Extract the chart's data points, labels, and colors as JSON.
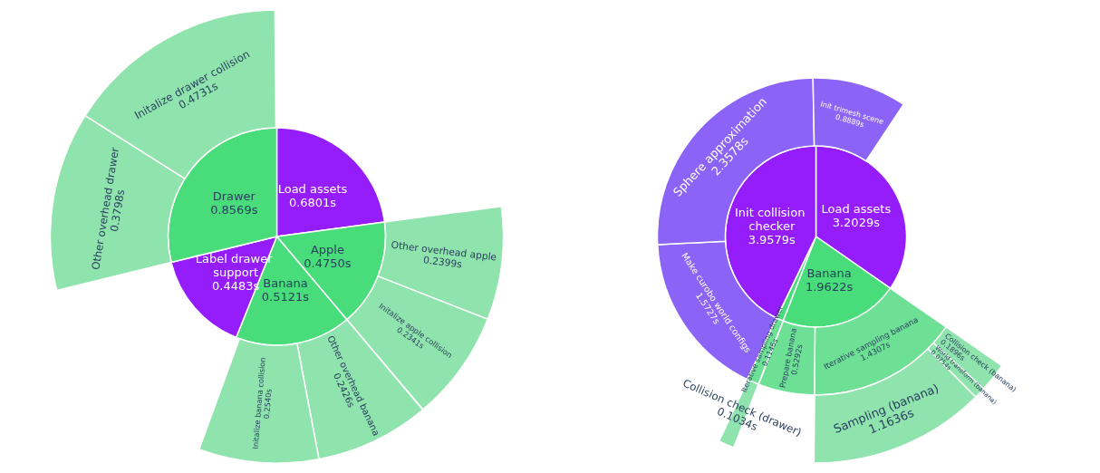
{
  "chart_data": [
    {
      "type": "other",
      "categories": [
        "Load assets",
        "Apple",
        "Other overhead apple",
        "Initalize apple collision",
        "Banana",
        "Other overhead banana",
        "Initalize banana collision",
        "Label drawer support",
        "Drawer",
        "Other overhead drawer",
        "Initalize drawer collision"
      ],
      "series": [
        {
          "values": [
            0.6801,
            0.475,
            null,
            null,
            0.5121,
            null,
            null,
            0.4483,
            0.8569,
            null,
            null
          ],
          "value_labels": [
            "0.6801s",
            "0.4750s",
            null,
            null,
            "0.5121s",
            null,
            null,
            "0.4483s",
            "0.8569s",
            null,
            null
          ],
          "colors": [
            "#951cfb",
            "#48dd7a",
            null,
            null,
            "#48dd7a",
            null,
            null,
            "#951cfb",
            "#48dd7a",
            null,
            null
          ]
        },
        {
          "values": [
            null,
            null,
            0.2399,
            0.2341,
            null,
            0.2426,
            0.254,
            null,
            null,
            0.3798,
            0.4731
          ],
          "value_labels": [
            null,
            null,
            "0.2399s",
            "0.2341s",
            null,
            "0.2426s",
            "0.2540s",
            null,
            null,
            "0.3798s",
            "0.4731s"
          ],
          "color": "#8fe3ac"
        }
      ]
    },
    {
      "type": "other",
      "categories": [
        "Load assets",
        "Banana",
        "Iterative sampling banana",
        "Collision check (banana)",
        "World transform (banana)",
        "Sampling (banana)",
        "Prepare banana",
        null,
        "Iterative sampling drawer",
        "Collision check (drawer)",
        "Init collision checker",
        "Make curobo world configs",
        "Sphere approximation",
        "Init trimesh scene"
      ],
      "series": [
        {
          "values": [
            3.2029,
            1.9622,
            null,
            null,
            null,
            null,
            null,
            null,
            null,
            null,
            3.9579,
            null,
            null,
            null
          ],
          "value_labels": [
            "3.2029s",
            "1.9622s",
            null,
            null,
            null,
            null,
            null,
            null,
            null,
            null,
            "3.9579s",
            null,
            null,
            null
          ],
          "colors": [
            "#951cfb",
            "#48dd7a",
            null,
            null,
            null,
            null,
            null,
            "#48dd7a",
            null,
            null,
            "#951cfb",
            null,
            null,
            null
          ]
        },
        {
          "values": [
            null,
            null,
            1.4307,
            null,
            null,
            null,
            0.5292,
            null,
            0.1146,
            null,
            null,
            1.5727,
            2.3578,
            0.8889
          ],
          "value_labels": [
            null,
            null,
            "1.4307s",
            null,
            null,
            null,
            "0.5292s",
            null,
            "0.1146s",
            null,
            null,
            "1.5727s",
            "2.3578s",
            "0.8889s"
          ],
          "colors": [
            null,
            null,
            "#6ee095",
            null,
            null,
            null,
            "#6ee095",
            null,
            "#6ee095",
            null,
            null,
            "#8b63f6",
            "#8b63f6",
            "#8b63f6"
          ]
        },
        {
          "values": [
            null,
            null,
            null,
            0.1896,
            0.0754,
            1.1636,
            null,
            null,
            null,
            0.1034,
            null,
            null,
            null,
            null
          ],
          "value_labels": [
            null,
            null,
            null,
            "0.1896s",
            "0.0754s",
            "1.1636s",
            null,
            null,
            null,
            "0.1034s",
            null,
            null,
            null,
            null
          ],
          "color": "#8fe3ac"
        }
      ]
    }
  ]
}
